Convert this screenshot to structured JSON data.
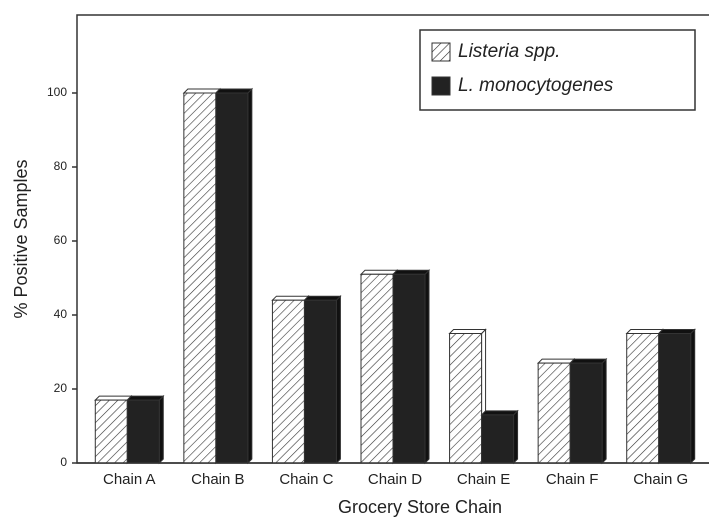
{
  "chart_data": {
    "type": "bar",
    "xlabel": "Grocery Store Chain",
    "ylabel": "% Positive Samples",
    "categories": [
      "Chain A",
      "Chain B",
      "Chain C",
      "Chain D",
      "Chain E",
      "Chain F",
      "Chain G"
    ],
    "series": [
      {
        "name": "Listeria spp.",
        "color": "#ffffff",
        "hatch": true,
        "values": [
          17,
          100,
          44,
          51,
          35,
          27,
          35
        ]
      },
      {
        "name": "L. monocytogenes",
        "color": "#222222",
        "hatch": false,
        "values": [
          17,
          100,
          44,
          51,
          13,
          27,
          35
        ]
      }
    ],
    "ylim": [
      0,
      120
    ],
    "yticks": [
      0,
      20,
      40,
      60,
      80,
      100
    ],
    "legend": "upper right"
  }
}
